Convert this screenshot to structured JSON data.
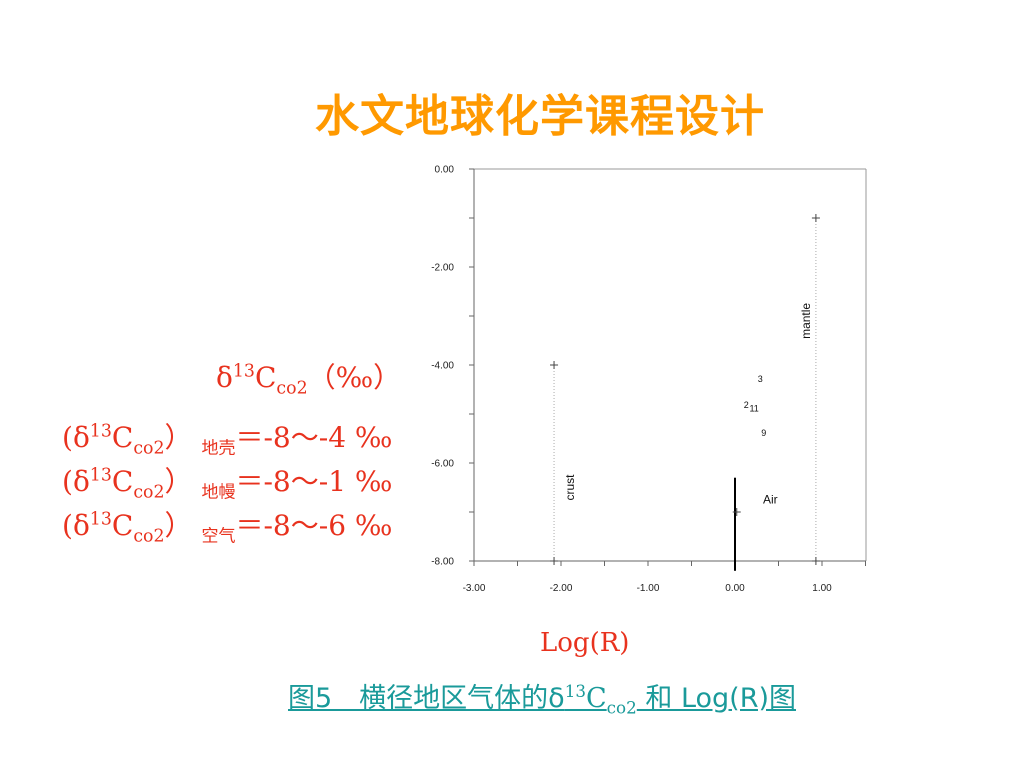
{
  "slide": {
    "title": "水文地球化学课程设计"
  },
  "ylabel": {
    "delta": "δ",
    "sup": "13",
    "c": "C",
    "sub": "co2",
    "unit": "（‰）"
  },
  "formulas": [
    {
      "open": "(",
      "delta": "δ",
      "sup": "13",
      "c": "C",
      "sub": "co2",
      "close": "）",
      "region": "地壳",
      "value": "＝-8～-4 ‰"
    },
    {
      "open": "(",
      "delta": "δ",
      "sup": "13",
      "c": "C",
      "sub": "co2",
      "close": "）",
      "region": "地幔",
      "value": "＝-8～-1 ‰"
    },
    {
      "open": "(",
      "delta": "δ",
      "sup": "13",
      "c": "C",
      "sub": "co2",
      "close": "）",
      "region": "空气",
      "value": "＝-8～-6 ‰"
    }
  ],
  "xlabel": "Log(R)",
  "caption": {
    "prefix": "图5　横径地区气体的δ",
    "sup": "13",
    "c": "C",
    "sub": "co2",
    "suffix": " 和 Log(R)图"
  },
  "chart_data": {
    "type": "scatter",
    "xlim": [
      -3,
      1.5
    ],
    "ylim": [
      -8,
      0
    ],
    "x_ticks": [
      -3,
      -2,
      -1,
      0,
      1
    ],
    "x_tick_labels": [
      "-3.00",
      "-2.00",
      "-1.00",
      "0.00",
      "1.00"
    ],
    "y_ticks": [
      0,
      -2,
      -4,
      -6,
      -8
    ],
    "y_tick_labels": [
      "0.00",
      "-2.00",
      "-4.00",
      "-6.00",
      "-8.00"
    ],
    "grid": false,
    "range_lines": [
      {
        "name": "crust",
        "label": "crust",
        "x": -2.08,
        "y": [
          -4,
          -8
        ],
        "style": "dotted",
        "color": "#aaaaaa"
      },
      {
        "name": "mantle",
        "label": "mantle",
        "x": 0.93,
        "y": [
          -1,
          -8
        ],
        "style": "dotted",
        "color": "#aaaaaa"
      },
      {
        "name": "air",
        "label": "Air",
        "x": 0.0,
        "y": [
          -6.3,
          -8.2
        ],
        "style": "solid",
        "color": "#000000"
      }
    ],
    "markers": [
      {
        "x": -2.08,
        "y": -4
      },
      {
        "x": -2.08,
        "y": -8
      },
      {
        "x": 0.93,
        "y": -1
      },
      {
        "x": 0.93,
        "y": -8
      },
      {
        "x": 0.02,
        "y": -7.0
      }
    ],
    "labeled_points": [
      {
        "label": "3",
        "x": 0.29,
        "y": -4.35
      },
      {
        "label": "2",
        "x": 0.13,
        "y": -4.88
      },
      {
        "label": "11",
        "x": 0.22,
        "y": -4.95
      },
      {
        "label": "9",
        "x": 0.33,
        "y": -5.45
      }
    ]
  }
}
